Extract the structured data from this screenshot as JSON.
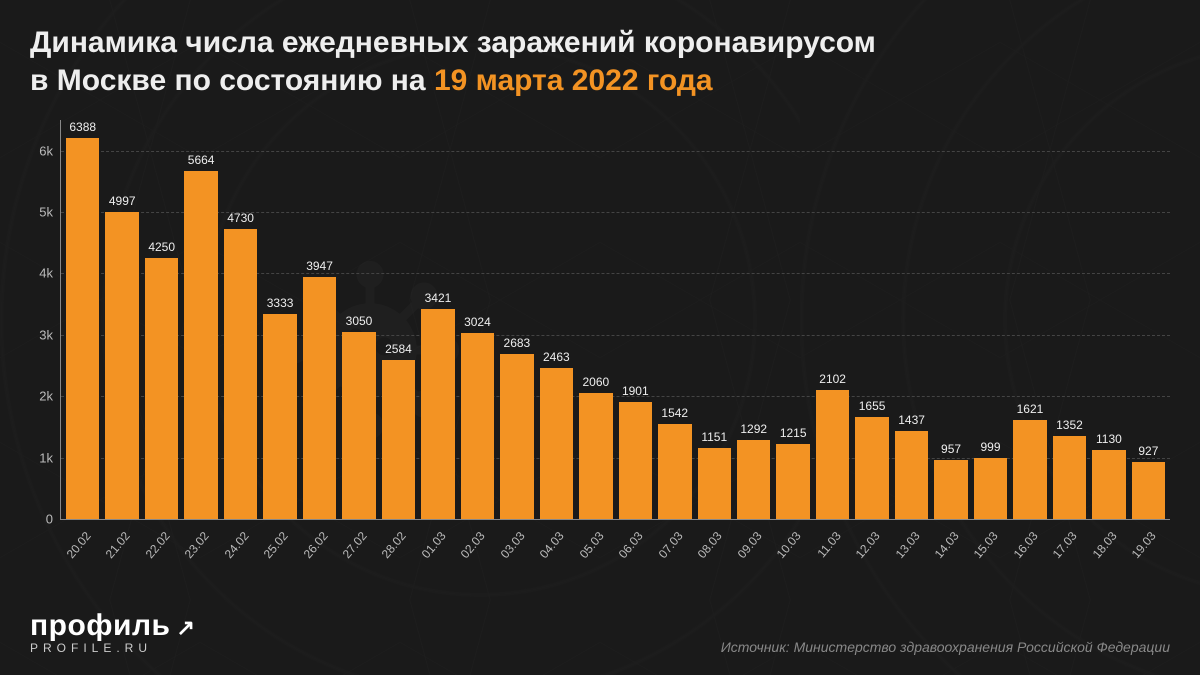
{
  "title": {
    "line1": "Динамика числа ежедневных заражений коронавирусом",
    "line2_prefix": "в Москве по состоянию на ",
    "line2_accent": "19 марта 2022 года",
    "main_color": "#eeeeee",
    "accent_color": "#f39323",
    "fontsize": 30
  },
  "chart": {
    "type": "bar",
    "bar_color": "#f39323",
    "background_color": "#1a1a1a",
    "axis_color": "#888888",
    "grid_color": "#444444",
    "tick_color": "#bbbbbb",
    "label_color": "#eeeeee",
    "label_fontsize": 12,
    "tick_fontsize": 13,
    "ylim": [
      0,
      6500
    ],
    "yticks": [
      0,
      1000,
      2000,
      3000,
      4000,
      5000,
      6000
    ],
    "ytick_labels": [
      "0",
      "1k",
      "2k",
      "3k",
      "4k",
      "5k",
      "6k"
    ],
    "x_label_rotation": -50,
    "bar_gap_ratio": 0.18,
    "data": [
      {
        "x": "20.02",
        "y": 6388
      },
      {
        "x": "21.02",
        "y": 4997
      },
      {
        "x": "22.02",
        "y": 4250
      },
      {
        "x": "23.02",
        "y": 5664
      },
      {
        "x": "24.02",
        "y": 4730
      },
      {
        "x": "25.02",
        "y": 3333
      },
      {
        "x": "26.02",
        "y": 3947
      },
      {
        "x": "27.02",
        "y": 3050
      },
      {
        "x": "28.02",
        "y": 2584
      },
      {
        "x": "01.03",
        "y": 3421
      },
      {
        "x": "02.03",
        "y": 3024
      },
      {
        "x": "03.03",
        "y": 2683
      },
      {
        "x": "04.03",
        "y": 2463
      },
      {
        "x": "05.03",
        "y": 2060
      },
      {
        "x": "06.03",
        "y": 1901
      },
      {
        "x": "07.03",
        "y": 1542
      },
      {
        "x": "08.03",
        "y": 1151
      },
      {
        "x": "09.03",
        "y": 1292
      },
      {
        "x": "10.03",
        "y": 1215
      },
      {
        "x": "11.03",
        "y": 2102
      },
      {
        "x": "12.03",
        "y": 1655
      },
      {
        "x": "13.03",
        "y": 1437
      },
      {
        "x": "14.03",
        "y": 957
      },
      {
        "x": "15.03",
        "y": 999
      },
      {
        "x": "16.03",
        "y": 1621
      },
      {
        "x": "17.03",
        "y": 1352
      },
      {
        "x": "18.03",
        "y": 1130
      },
      {
        "x": "19.03",
        "y": 927
      }
    ]
  },
  "logo": {
    "main": "профиль",
    "sub": "PROFILE.RU",
    "color": "#ffffff"
  },
  "source": {
    "prefix": "Источник: ",
    "text": "Министерство здравоохранения Российской Федерации",
    "color": "#888888",
    "fontsize": 14
  }
}
